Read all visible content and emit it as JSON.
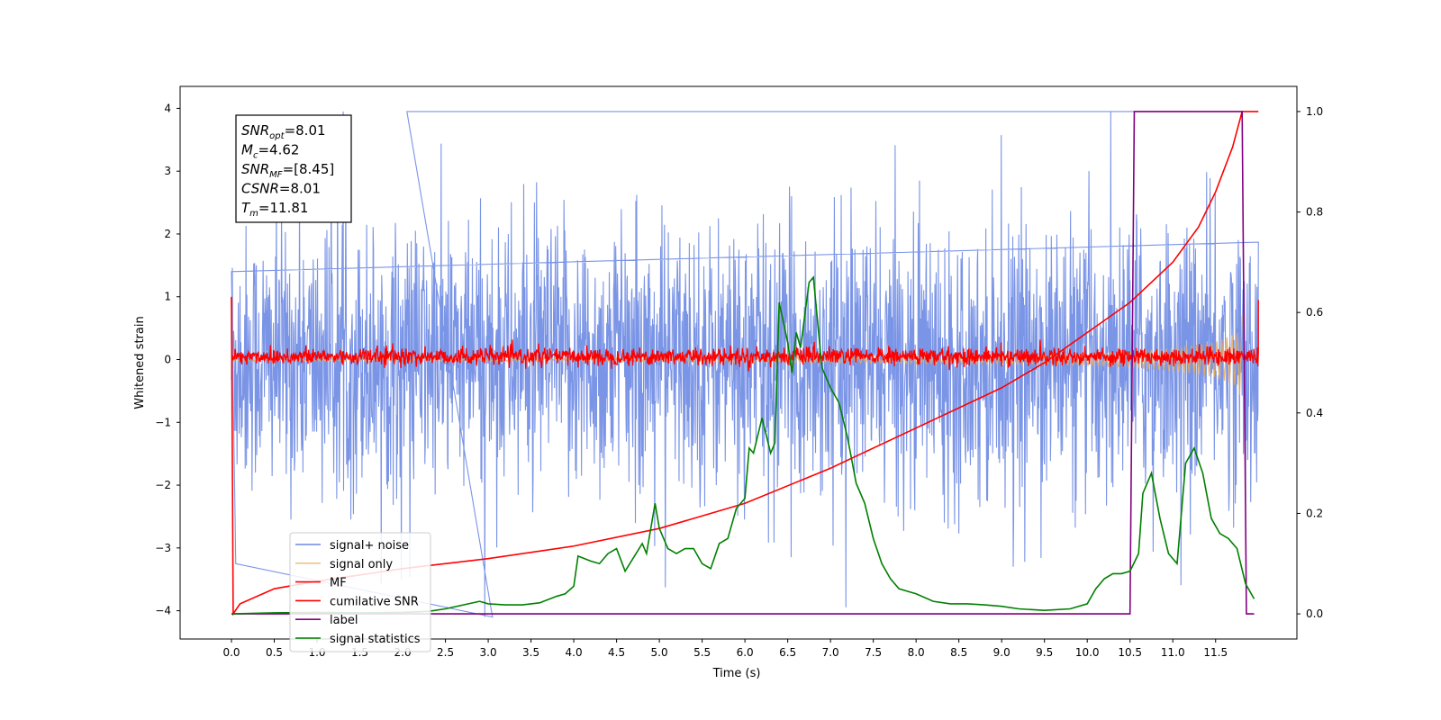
{
  "chart_data": {
    "type": "line",
    "xlabel": "Time (s)",
    "ylabel": "Whitened strain",
    "xlim": [
      -0.6,
      12.45
    ],
    "ylim_left": [
      -4.45,
      4.35
    ],
    "ylim_right": [
      -0.05,
      1.05
    ],
    "grid": false,
    "x_ticks": [
      "0.0",
      "0.5",
      "1.0",
      "1.5",
      "2.0",
      "2.5",
      "3.0",
      "3.5",
      "4.0",
      "4.5",
      "5.0",
      "5.5",
      "6.0",
      "6.5",
      "7.0",
      "7.5",
      "8.0",
      "8.5",
      "9.0",
      "9.5",
      "10.0",
      "10.5",
      "11.0",
      "11.5"
    ],
    "y_ticks_left": [
      "−4",
      "−3",
      "−2",
      "−1",
      "0",
      "1",
      "2",
      "3",
      "4"
    ],
    "y_ticks_right": [
      "0.0",
      "0.2",
      "0.4",
      "0.6",
      "0.8",
      "1.0"
    ],
    "legend_position": "lower-left",
    "series": [
      {
        "name": "signal+ noise",
        "color": "#6b88e3",
        "axis": "left",
        "x_range": [
          0.0,
          12.0
        ],
        "y_range_approx": [
          -4.1,
          3.95
        ],
        "note_points": [
          [
            0.0,
            1.4
          ],
          [
            0.05,
            -3.25
          ],
          [
            3.05,
            -4.1
          ],
          [
            2.05,
            3.95
          ],
          [
            11.2,
            3.95
          ]
        ]
      },
      {
        "name": "signal only",
        "color": "#e8a95a",
        "axis": "left",
        "envelope": [
          [
            0.0,
            0.02
          ],
          [
            6.0,
            0.04
          ],
          [
            9.0,
            0.07
          ],
          [
            10.0,
            0.1
          ],
          [
            10.5,
            0.13
          ],
          [
            11.0,
            0.18
          ],
          [
            11.5,
            0.28
          ],
          [
            11.75,
            0.42
          ],
          [
            11.81,
            0.7
          ]
        ]
      },
      {
        "name": "MF",
        "color": "#ff0000",
        "axis": "left",
        "x_range": [
          0.0,
          12.0
        ],
        "y_range_approx": [
          -0.2,
          0.42
        ]
      },
      {
        "name": "cumilative SNR",
        "color": "#ff0000",
        "axis": "right",
        "points": [
          [
            0.0,
            0.63
          ],
          [
            0.02,
            0.0
          ],
          [
            0.1,
            0.02
          ],
          [
            0.5,
            0.05
          ],
          [
            1.0,
            0.065
          ],
          [
            2.0,
            0.09
          ],
          [
            3.0,
            0.11
          ],
          [
            4.0,
            0.135
          ],
          [
            5.0,
            0.17
          ],
          [
            6.0,
            0.22
          ],
          [
            7.0,
            0.29
          ],
          [
            8.0,
            0.37
          ],
          [
            9.0,
            0.45
          ],
          [
            9.5,
            0.5
          ],
          [
            10.0,
            0.56
          ],
          [
            10.5,
            0.62
          ],
          [
            11.0,
            0.7
          ],
          [
            11.3,
            0.77
          ],
          [
            11.5,
            0.84
          ],
          [
            11.7,
            0.93
          ],
          [
            11.81,
            1.0
          ],
          [
            12.0,
            1.0
          ]
        ]
      },
      {
        "name": "label",
        "color": "#800080",
        "axis": "right",
        "points": [
          [
            0.0,
            0.0
          ],
          [
            10.5,
            0.0
          ],
          [
            10.55,
            1.0
          ],
          [
            11.81,
            1.0
          ],
          [
            11.86,
            0.0
          ],
          [
            11.95,
            0.0
          ]
        ]
      },
      {
        "name": "signal statistics",
        "color": "#008000",
        "axis": "right",
        "points": [
          [
            0.0,
            0.0
          ],
          [
            0.5,
            0.002
          ],
          [
            1.0,
            0.003
          ],
          [
            1.5,
            0.002
          ],
          [
            2.0,
            0.003
          ],
          [
            2.3,
            0.005
          ],
          [
            2.5,
            0.01
          ],
          [
            2.9,
            0.025
          ],
          [
            3.0,
            0.02
          ],
          [
            3.2,
            0.018
          ],
          [
            3.4,
            0.018
          ],
          [
            3.6,
            0.022
          ],
          [
            3.8,
            0.035
          ],
          [
            3.9,
            0.04
          ],
          [
            4.0,
            0.055
          ],
          [
            4.05,
            0.115
          ],
          [
            4.2,
            0.105
          ],
          [
            4.3,
            0.1
          ],
          [
            4.4,
            0.12
          ],
          [
            4.5,
            0.13
          ],
          [
            4.6,
            0.085
          ],
          [
            4.8,
            0.14
          ],
          [
            4.85,
            0.12
          ],
          [
            4.95,
            0.22
          ],
          [
            5.0,
            0.17
          ],
          [
            5.1,
            0.13
          ],
          [
            5.2,
            0.12
          ],
          [
            5.3,
            0.13
          ],
          [
            5.4,
            0.13
          ],
          [
            5.5,
            0.1
          ],
          [
            5.6,
            0.09
          ],
          [
            5.7,
            0.14
          ],
          [
            5.8,
            0.15
          ],
          [
            5.9,
            0.21
          ],
          [
            6.0,
            0.23
          ],
          [
            6.05,
            0.33
          ],
          [
            6.1,
            0.32
          ],
          [
            6.2,
            0.39
          ],
          [
            6.3,
            0.32
          ],
          [
            6.35,
            0.34
          ],
          [
            6.4,
            0.62
          ],
          [
            6.5,
            0.54
          ],
          [
            6.55,
            0.48
          ],
          [
            6.6,
            0.56
          ],
          [
            6.65,
            0.53
          ],
          [
            6.75,
            0.66
          ],
          [
            6.8,
            0.67
          ],
          [
            6.9,
            0.49
          ],
          [
            7.0,
            0.45
          ],
          [
            7.1,
            0.42
          ],
          [
            7.2,
            0.35
          ],
          [
            7.3,
            0.26
          ],
          [
            7.4,
            0.22
          ],
          [
            7.5,
            0.15
          ],
          [
            7.6,
            0.1
          ],
          [
            7.7,
            0.07
          ],
          [
            7.8,
            0.05
          ],
          [
            7.9,
            0.045
          ],
          [
            8.0,
            0.04
          ],
          [
            8.2,
            0.025
          ],
          [
            8.4,
            0.02
          ],
          [
            8.6,
            0.02
          ],
          [
            8.8,
            0.018
          ],
          [
            9.0,
            0.015
          ],
          [
            9.2,
            0.01
          ],
          [
            9.5,
            0.007
          ],
          [
            9.8,
            0.01
          ],
          [
            10.0,
            0.02
          ],
          [
            10.1,
            0.05
          ],
          [
            10.2,
            0.07
          ],
          [
            10.3,
            0.08
          ],
          [
            10.4,
            0.08
          ],
          [
            10.5,
            0.085
          ],
          [
            10.6,
            0.12
          ],
          [
            10.65,
            0.24
          ],
          [
            10.75,
            0.28
          ],
          [
            10.85,
            0.19
          ],
          [
            10.95,
            0.12
          ],
          [
            11.05,
            0.1
          ],
          [
            11.15,
            0.3
          ],
          [
            11.25,
            0.33
          ],
          [
            11.35,
            0.28
          ],
          [
            11.45,
            0.19
          ],
          [
            11.55,
            0.16
          ],
          [
            11.65,
            0.15
          ],
          [
            11.75,
            0.13
          ],
          [
            11.85,
            0.06
          ],
          [
            11.95,
            0.03
          ]
        ]
      }
    ]
  },
  "info_box": [
    {
      "sym": "SNR",
      "sub": "opt",
      "rest": "=8.01"
    },
    {
      "sym": "M",
      "sub": "c",
      "rest": "=4.62"
    },
    {
      "sym": "SNR",
      "sub": "MF",
      "rest": "=[8.45]"
    },
    {
      "sym": "CSNR",
      "sub": "",
      "rest": "=8.01"
    },
    {
      "sym": "T",
      "sub": "m",
      "rest": "=11.81"
    }
  ],
  "legend": [
    "signal+ noise",
    "signal only",
    "MF",
    "cumilative SNR",
    "label",
    "signal statistics"
  ]
}
